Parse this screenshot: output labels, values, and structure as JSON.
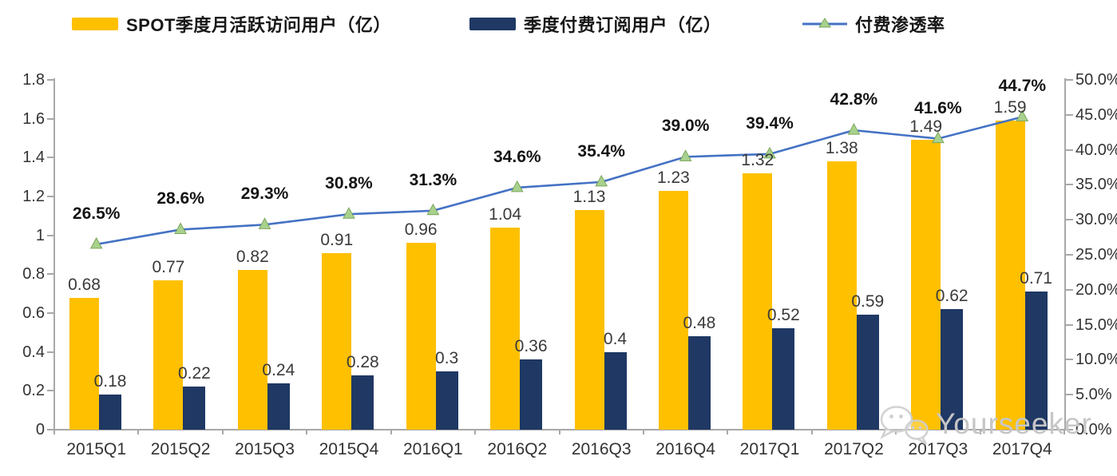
{
  "legend": {
    "items": [
      {
        "label": "SPOT季度月活跃访问用户（亿）",
        "swatch": "bar",
        "color": "#FFC000"
      },
      {
        "label": "季度付费订阅用户（亿）",
        "swatch": "bar",
        "color": "#1F3864"
      },
      {
        "label": "付费渗透率",
        "swatch": "line-triangle",
        "color": "#4472C4",
        "marker_color": "#A9D18E"
      }
    ]
  },
  "chart_data": {
    "type": "combo-bar-line",
    "title": "",
    "categories": [
      "2015Q1",
      "2015Q2",
      "2015Q3",
      "2015Q4",
      "2016Q1",
      "2016Q2",
      "2016Q3",
      "2016Q4",
      "2017Q1",
      "2017Q2",
      "2017Q3",
      "2017Q4"
    ],
    "series": [
      {
        "name": "SPOT季度月活跃访问用户（亿）",
        "type": "bar",
        "axis": "left",
        "color": "#FFC000",
        "values": [
          0.68,
          0.77,
          0.82,
          0.91,
          0.96,
          1.04,
          1.13,
          1.23,
          1.32,
          1.38,
          1.49,
          1.59
        ],
        "value_labels": [
          "0.68",
          "0.77",
          "0.82",
          "0.91",
          "0.96",
          "1.04",
          "1.13",
          "1.23",
          "1.32",
          "1.38",
          "1.49",
          "1.59"
        ]
      },
      {
        "name": "季度付费订阅用户（亿）",
        "type": "bar",
        "axis": "left",
        "color": "#1F3864",
        "values": [
          0.18,
          0.22,
          0.24,
          0.28,
          0.3,
          0.36,
          0.4,
          0.48,
          0.52,
          0.59,
          0.62,
          0.71
        ],
        "value_labels": [
          "0.18",
          "0.22",
          "0.24",
          "0.28",
          "0.3",
          "0.36",
          "0.4",
          "0.48",
          "0.52",
          "0.59",
          "0.62",
          "0.71"
        ]
      },
      {
        "name": "付费渗透率",
        "type": "line",
        "axis": "right",
        "color": "#4472C4",
        "marker": "triangle",
        "marker_color": "#A9D18E",
        "marker_edge_color": "#7BA65B",
        "values": [
          26.5,
          28.6,
          29.3,
          30.8,
          31.3,
          34.6,
          35.4,
          39.0,
          39.4,
          42.8,
          41.6,
          44.7
        ],
        "value_labels": [
          "26.5%",
          "28.6%",
          "29.3%",
          "30.8%",
          "31.3%",
          "34.6%",
          "35.4%",
          "39.0%",
          "39.4%",
          "42.8%",
          "41.6%",
          "44.7%"
        ]
      }
    ],
    "left_axis": {
      "min": 0,
      "max": 1.8,
      "step": 0.2,
      "tick_labels": [
        "0",
        "0.2",
        "0.4",
        "0.6",
        "0.8",
        "1",
        "1.2",
        "1.4",
        "1.6",
        "1.8"
      ]
    },
    "right_axis": {
      "min": 0,
      "max": 50,
      "step": 5,
      "tick_labels": [
        "0.0%",
        "5.0%",
        "10.0%",
        "15.0%",
        "20.0%",
        "25.0%",
        "30.0%",
        "35.0%",
        "40.0%",
        "45.0%",
        "50.0%"
      ]
    },
    "grid": false,
    "legend_position": "top",
    "axis_color": "#A8A8A8"
  },
  "watermark": {
    "text": "Yourseeker",
    "icon": "wechat-icon",
    "color": "#C6C6C6"
  }
}
